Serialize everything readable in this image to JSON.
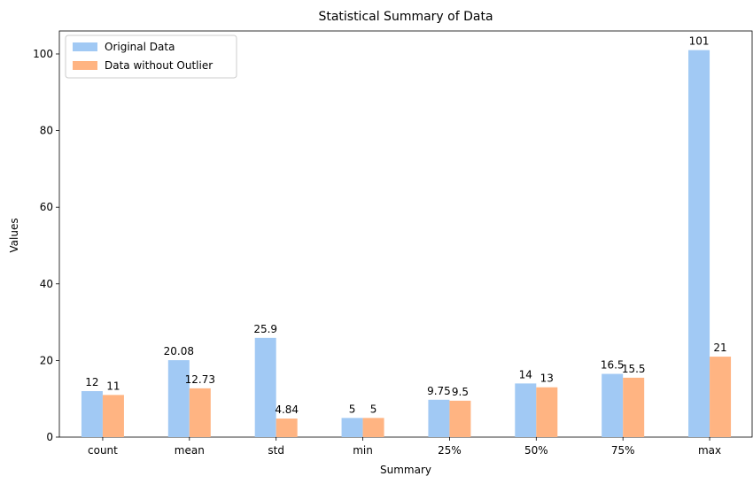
{
  "chart_data": {
    "type": "bar",
    "title": "Statistical Summary of Data",
    "xlabel": "Summary",
    "ylabel": "Values",
    "categories": [
      "count",
      "mean",
      "std",
      "min",
      "25%",
      "50%",
      "75%",
      "max"
    ],
    "series": [
      {
        "name": "Original Data",
        "color": "#a1c9f4",
        "values": [
          12,
          20.08,
          25.9,
          5,
          9.75,
          14,
          16.5,
          101
        ],
        "labels": [
          "12",
          "20.08",
          "25.9",
          "5",
          "9.75",
          "14",
          "16.5",
          "101"
        ]
      },
      {
        "name": "Data without Outlier",
        "color": "#ffb482",
        "values": [
          11,
          12.73,
          4.84,
          5,
          9.5,
          13,
          15.5,
          21
        ],
        "labels": [
          "11",
          "12.73",
          "4.84",
          "5",
          "9.5",
          "13",
          "15.5",
          "21"
        ]
      }
    ],
    "ylim": [
      0,
      106
    ],
    "yticks": [
      0,
      20,
      40,
      60,
      80,
      100
    ],
    "grid": false,
    "legend_position": "top-left"
  }
}
